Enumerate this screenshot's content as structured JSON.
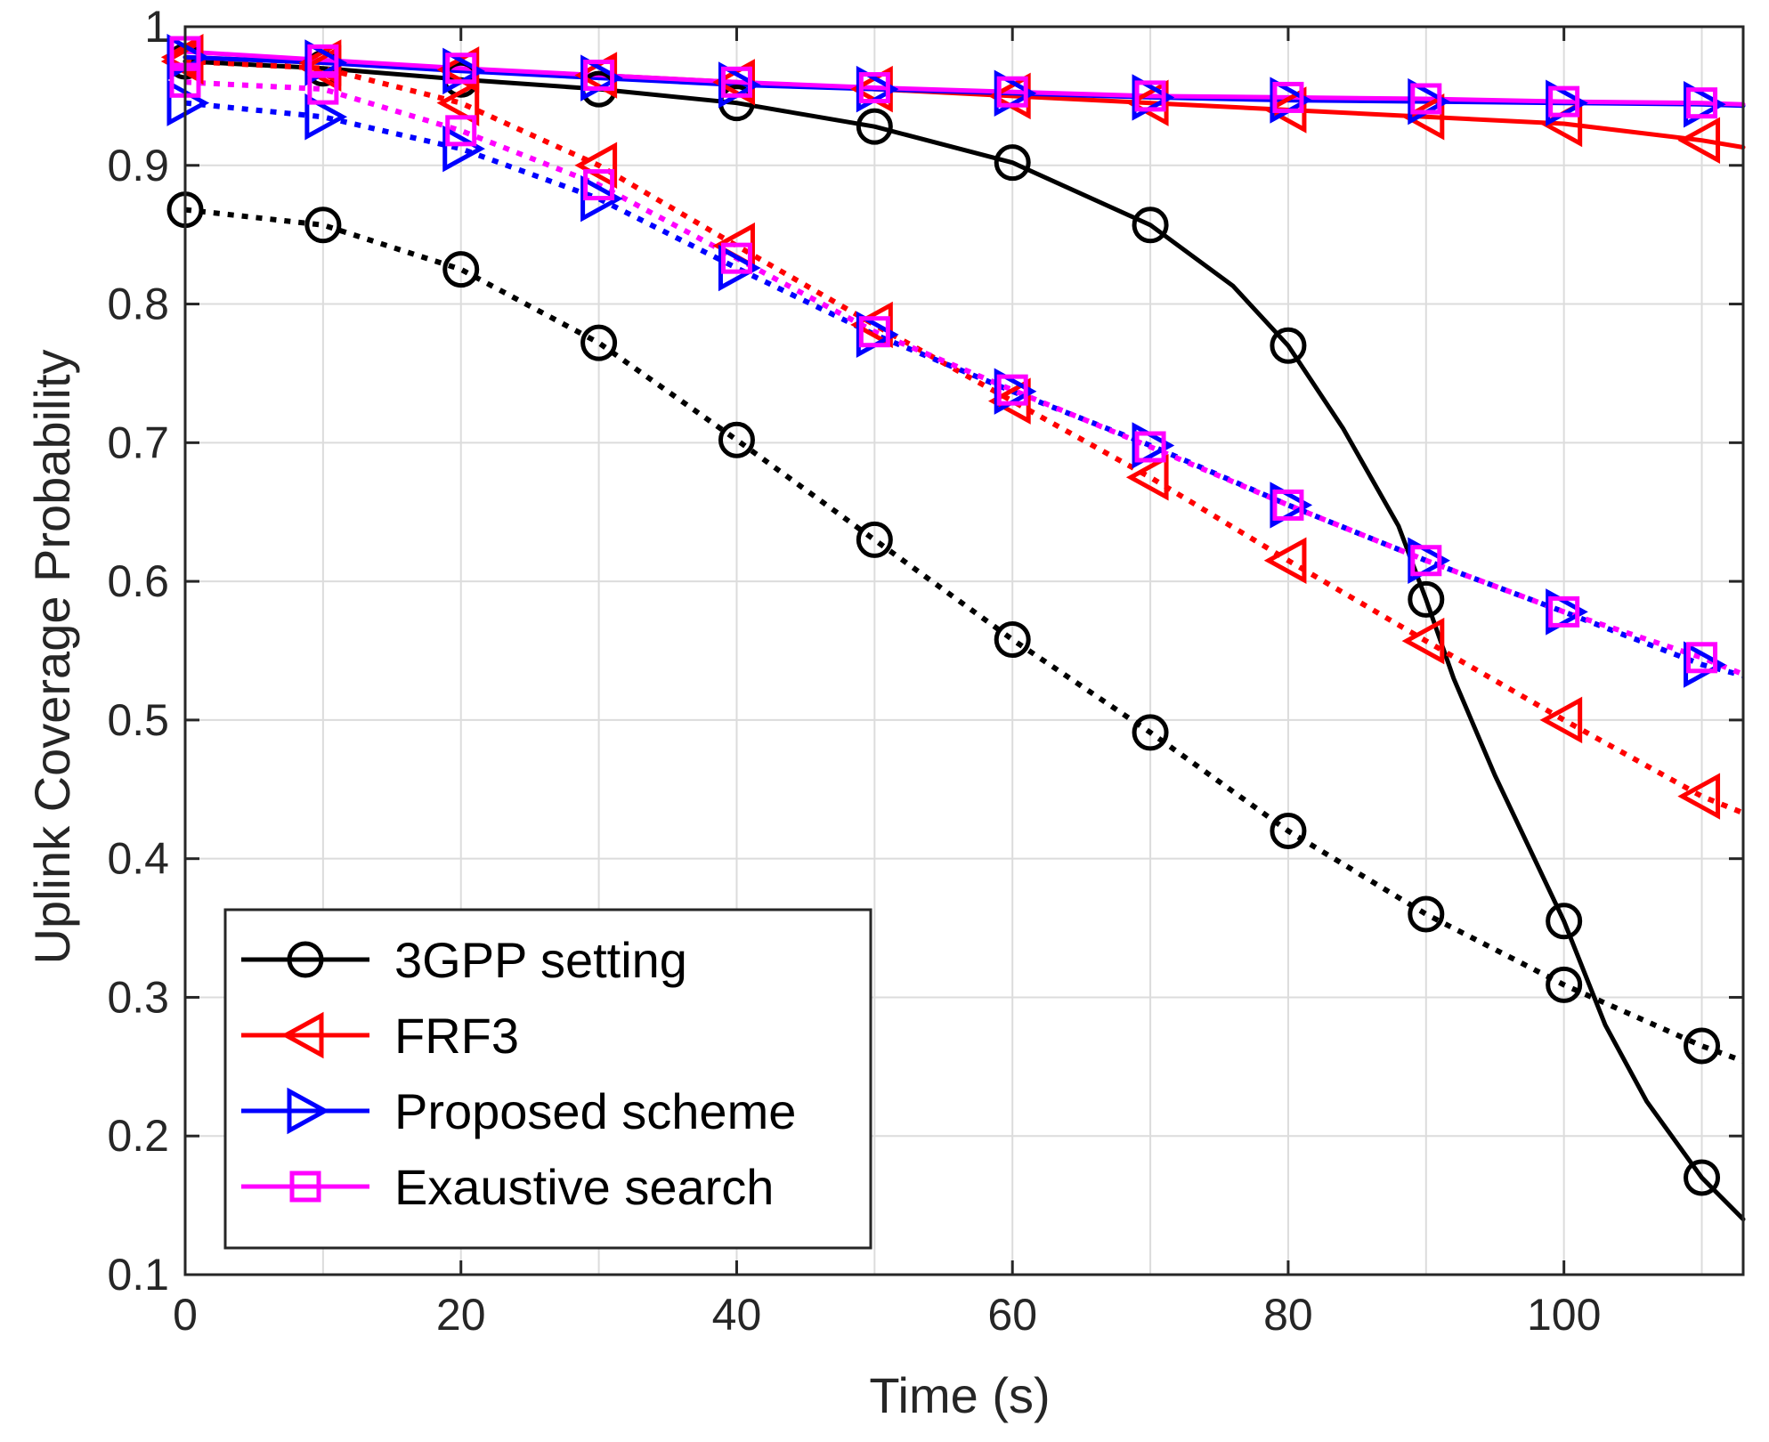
{
  "chart_data": {
    "type": "line",
    "title": "",
    "xlabel": "Time (s)",
    "ylabel": "Uplink Coverage Probability",
    "xlim": [
      0,
      113
    ],
    "ylim": [
      0.1,
      1.0
    ],
    "xticks": [
      0,
      20,
      40,
      60,
      80,
      100
    ],
    "yticks": [
      0.1,
      0.2,
      0.3,
      0.4,
      0.5,
      0.6,
      0.7,
      0.8,
      0.9,
      1.0
    ],
    "xtick_labels": [
      "0",
      "20",
      "40",
      "60",
      "80",
      "100"
    ],
    "ytick_labels": [
      "0.1",
      "0.2",
      "0.3",
      "0.4",
      "0.5",
      "0.6",
      "0.7",
      "0.8",
      "0.9",
      "1"
    ],
    "grid": true,
    "legend_position": "bottom-left",
    "marker_x": [
      0,
      10,
      20,
      30,
      40,
      50,
      60,
      70,
      80,
      90,
      100,
      110
    ],
    "series": [
      {
        "name": "3GPP setting (solid)",
        "legend": "3GPP setting",
        "color": "#000000",
        "style": "solid",
        "marker": "circle",
        "x": [
          0,
          10,
          20,
          30,
          40,
          50,
          60,
          70,
          76,
          80,
          84,
          88,
          90,
          92,
          95,
          100,
          103,
          106,
          110,
          113
        ],
        "y": [
          0.975,
          0.97,
          0.962,
          0.955,
          0.945,
          0.928,
          0.902,
          0.857,
          0.813,
          0.77,
          0.71,
          0.64,
          0.587,
          0.53,
          0.46,
          0.355,
          0.28,
          0.225,
          0.17,
          0.14
        ]
      },
      {
        "name": "3GPP setting (dotted)",
        "legend": "",
        "color": "#000000",
        "style": "dotted",
        "marker": "circle",
        "x": [
          0,
          10,
          20,
          30,
          40,
          50,
          60,
          70,
          80,
          90,
          100,
          110,
          113
        ],
        "y": [
          0.868,
          0.857,
          0.825,
          0.772,
          0.702,
          0.63,
          0.558,
          0.491,
          0.42,
          0.36,
          0.309,
          0.265,
          0.254
        ]
      },
      {
        "name": "FRF3 (solid)",
        "legend": "FRF3",
        "color": "#ff0000",
        "style": "solid",
        "marker": "triangle-left",
        "x": [
          0,
          10,
          20,
          30,
          40,
          50,
          60,
          70,
          80,
          90,
          100,
          110,
          113
        ],
        "y": [
          0.978,
          0.974,
          0.969,
          0.965,
          0.96,
          0.955,
          0.95,
          0.945,
          0.94,
          0.935,
          0.93,
          0.918,
          0.913
        ]
      },
      {
        "name": "FRF3 (dotted)",
        "legend": "",
        "color": "#ff0000",
        "style": "dotted",
        "marker": "triangle-left",
        "x": [
          0,
          10,
          20,
          30,
          40,
          50,
          60,
          70,
          80,
          90,
          100,
          110,
          113
        ],
        "y": [
          0.975,
          0.97,
          0.945,
          0.9,
          0.842,
          0.785,
          0.73,
          0.675,
          0.615,
          0.557,
          0.5,
          0.445,
          0.433
        ]
      },
      {
        "name": "Proposed scheme (solid)",
        "legend": "Proposed scheme",
        "color": "#0000ff",
        "style": "solid",
        "marker": "triangle-right",
        "x": [
          0,
          10,
          20,
          30,
          40,
          50,
          60,
          70,
          80,
          90,
          100,
          110,
          113
        ],
        "y": [
          0.978,
          0.974,
          0.968,
          0.963,
          0.958,
          0.955,
          0.952,
          0.949,
          0.947,
          0.946,
          0.945,
          0.944,
          0.943
        ]
      },
      {
        "name": "Proposed scheme (dotted)",
        "legend": "",
        "color": "#0000ff",
        "style": "dotted",
        "marker": "triangle-right",
        "x": [
          0,
          10,
          20,
          30,
          40,
          50,
          60,
          70,
          80,
          90,
          100,
          110,
          113
        ],
        "y": [
          0.945,
          0.935,
          0.912,
          0.876,
          0.826,
          0.778,
          0.737,
          0.698,
          0.655,
          0.615,
          0.578,
          0.54,
          0.532
        ]
      },
      {
        "name": "Exaustive search (solid)",
        "legend": "Exaustive search",
        "color": "#ff00ff",
        "style": "solid",
        "marker": "square",
        "x": [
          0,
          10,
          20,
          30,
          40,
          50,
          60,
          70,
          80,
          90,
          100,
          110,
          113
        ],
        "y": [
          0.982,
          0.976,
          0.97,
          0.965,
          0.96,
          0.956,
          0.953,
          0.95,
          0.949,
          0.948,
          0.946,
          0.945,
          0.944
        ]
      },
      {
        "name": "Exaustive search (dotted)",
        "legend": "",
        "color": "#ff00ff",
        "style": "dotted",
        "marker": "square",
        "x": [
          0,
          10,
          20,
          30,
          40,
          50,
          60,
          70,
          80,
          90,
          100,
          110,
          113
        ],
        "y": [
          0.96,
          0.955,
          0.925,
          0.886,
          0.833,
          0.78,
          0.738,
          0.697,
          0.655,
          0.615,
          0.578,
          0.545,
          0.533
        ]
      }
    ]
  }
}
